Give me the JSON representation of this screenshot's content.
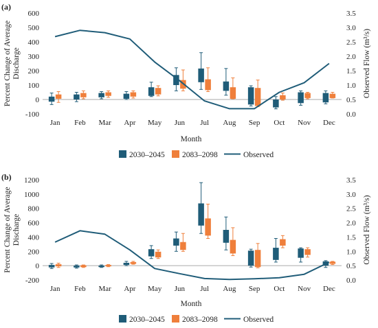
{
  "colors": {
    "series_2045": "#1f5c78",
    "series_2098": "#ef7f3b",
    "observed": "#1f5c78",
    "axis": "#999999"
  },
  "legend": {
    "items": [
      "2030–2045",
      "2083–2098",
      "Observed"
    ]
  },
  "chart_data": [
    {
      "type": "box",
      "panel_label": "(a)",
      "categories": [
        "Jan",
        "Feb",
        "Mar",
        "Apr",
        "May",
        "Jun",
        "Jul",
        "Aug",
        "Sep",
        "Oct",
        "Nov",
        "Dec"
      ],
      "xlabel": "Month",
      "ylabel": "Percent Change of Average Discharge",
      "y2label": "Observed Flow (m³/s)",
      "ylim": [
        -100,
        600
      ],
      "yticks": [
        -100,
        0,
        100,
        200,
        300,
        400,
        500,
        600
      ],
      "y2lim": [
        0.0,
        3.5
      ],
      "y2ticks": [
        "0.0",
        "0.5",
        "1.0",
        "1.5",
        "2.0",
        "2.5",
        "3.0",
        "3.5"
      ],
      "series": [
        {
          "name": "2030–2045",
          "boxes": [
            {
              "min": -35,
              "q1": -15,
              "q3": 20,
              "max": 45
            },
            {
              "min": -15,
              "q1": 0,
              "q3": 35,
              "max": 50
            },
            {
              "min": 5,
              "q1": 15,
              "q3": 45,
              "max": 55
            },
            {
              "min": 0,
              "q1": 5,
              "q3": 40,
              "max": 55
            },
            {
              "min": 20,
              "q1": 25,
              "q3": 85,
              "max": 120
            },
            {
              "min": 60,
              "q1": 100,
              "q3": 170,
              "max": 220
            },
            {
              "min": 70,
              "q1": 120,
              "q3": 215,
              "max": 325
            },
            {
              "min": 30,
              "q1": 60,
              "q3": 125,
              "max": 215
            },
            {
              "min": -45,
              "q1": -35,
              "q3": 85,
              "max": 95
            },
            {
              "min": -65,
              "q1": -55,
              "q3": 0,
              "max": 20
            },
            {
              "min": -40,
              "q1": -25,
              "q3": 50,
              "max": 60
            },
            {
              "min": -30,
              "q1": -20,
              "q3": 45,
              "max": 60
            }
          ]
        },
        {
          "name": "2083–2098",
          "boxes": [
            {
              "min": -20,
              "q1": 5,
              "q3": 35,
              "max": 55
            },
            {
              "min": 5,
              "q1": 15,
              "q3": 45,
              "max": 60
            },
            {
              "min": 15,
              "q1": 25,
              "q3": 50,
              "max": 60
            },
            {
              "min": 10,
              "q1": 20,
              "q3": 50,
              "max": 60
            },
            {
              "min": 25,
              "q1": 35,
              "q3": 80,
              "max": 95
            },
            {
              "min": 60,
              "q1": 75,
              "q3": 135,
              "max": 205
            },
            {
              "min": 55,
              "q1": 65,
              "q3": 140,
              "max": 220
            },
            {
              "min": 5,
              "q1": 5,
              "q3": 85,
              "max": 150
            },
            {
              "min": -50,
              "q1": -45,
              "q3": 80,
              "max": 135
            },
            {
              "min": -5,
              "q1": 0,
              "q3": 30,
              "max": 45
            },
            {
              "min": 5,
              "q1": 10,
              "q3": 45,
              "max": 50
            },
            {
              "min": 10,
              "q1": 10,
              "q3": 40,
              "max": 50
            }
          ]
        },
        {
          "name": "Observed",
          "axis": "secondary",
          "values": [
            2.68,
            2.9,
            2.82,
            2.6,
            1.8,
            1.15,
            0.45,
            0.18,
            0.18,
            0.75,
            1.08,
            1.75
          ]
        }
      ]
    },
    {
      "type": "box",
      "panel_label": "(b)",
      "categories": [
        "Jan",
        "Feb",
        "Mar",
        "Apr",
        "May",
        "Jun",
        "Jul",
        "Aug",
        "Sep",
        "Oct",
        "Nov",
        "Dec"
      ],
      "xlabel": "Month",
      "ylabel": "Percent Change of Average Discharge",
      "y2label": "Observed Flow (m³/s)",
      "ylim": [
        -200,
        1200
      ],
      "yticks": [
        -200,
        0,
        200,
        400,
        600,
        800,
        1000,
        1200
      ],
      "y2lim": [
        0.0,
        3.5
      ],
      "y2ticks": [
        "0.0",
        "0.5",
        "1.0",
        "1.5",
        "2.0",
        "2.5",
        "3.0",
        "3.5"
      ],
      "series": [
        {
          "name": "2030–2045",
          "boxes": [
            {
              "min": -40,
              "q1": -25,
              "q3": 10,
              "max": 30
            },
            {
              "min": -35,
              "q1": -25,
              "q3": 0,
              "max": 10
            },
            {
              "min": -25,
              "q1": -20,
              "q3": 0,
              "max": 10
            },
            {
              "min": 0,
              "q1": 10,
              "q3": 40,
              "max": 60
            },
            {
              "min": 100,
              "q1": 130,
              "q3": 230,
              "max": 280
            },
            {
              "min": 200,
              "q1": 280,
              "q3": 380,
              "max": 470
            },
            {
              "min": 450,
              "q1": 560,
              "q3": 870,
              "max": 1160
            },
            {
              "min": 220,
              "q1": 320,
              "q3": 500,
              "max": 680
            },
            {
              "min": -20,
              "q1": 0,
              "q3": 210,
              "max": 230
            },
            {
              "min": 50,
              "q1": 80,
              "q3": 250,
              "max": 380
            },
            {
              "min": 50,
              "q1": 110,
              "q3": 240,
              "max": 250
            },
            {
              "min": -25,
              "q1": 0,
              "q3": 60,
              "max": 70
            }
          ]
        },
        {
          "name": "2083–2098",
          "boxes": [
            {
              "min": -25,
              "q1": -10,
              "q3": 20,
              "max": 35
            },
            {
              "min": -25,
              "q1": -20,
              "q3": 5,
              "max": 10
            },
            {
              "min": -15,
              "q1": -10,
              "q3": 10,
              "max": 15
            },
            {
              "min": 20,
              "q1": 25,
              "q3": 50,
              "max": 60
            },
            {
              "min": 100,
              "q1": 115,
              "q3": 195,
              "max": 220
            },
            {
              "min": 200,
              "q1": 220,
              "q3": 330,
              "max": 450
            },
            {
              "min": 380,
              "q1": 420,
              "q3": 660,
              "max": 860
            },
            {
              "min": 140,
              "q1": 170,
              "q3": 360,
              "max": 530
            },
            {
              "min": -30,
              "q1": -20,
              "q3": 220,
              "max": 310
            },
            {
              "min": 250,
              "q1": 280,
              "q3": 370,
              "max": 420
            },
            {
              "min": 120,
              "q1": 150,
              "q3": 230,
              "max": 250
            },
            {
              "min": 15,
              "q1": 25,
              "q3": 55,
              "max": 60
            }
          ]
        },
        {
          "name": "Observed",
          "axis": "secondary",
          "values": [
            1.32,
            1.72,
            1.6,
            1.05,
            0.4,
            0.22,
            0.05,
            0.02,
            0.04,
            0.08,
            0.2,
            0.62
          ]
        }
      ]
    }
  ]
}
